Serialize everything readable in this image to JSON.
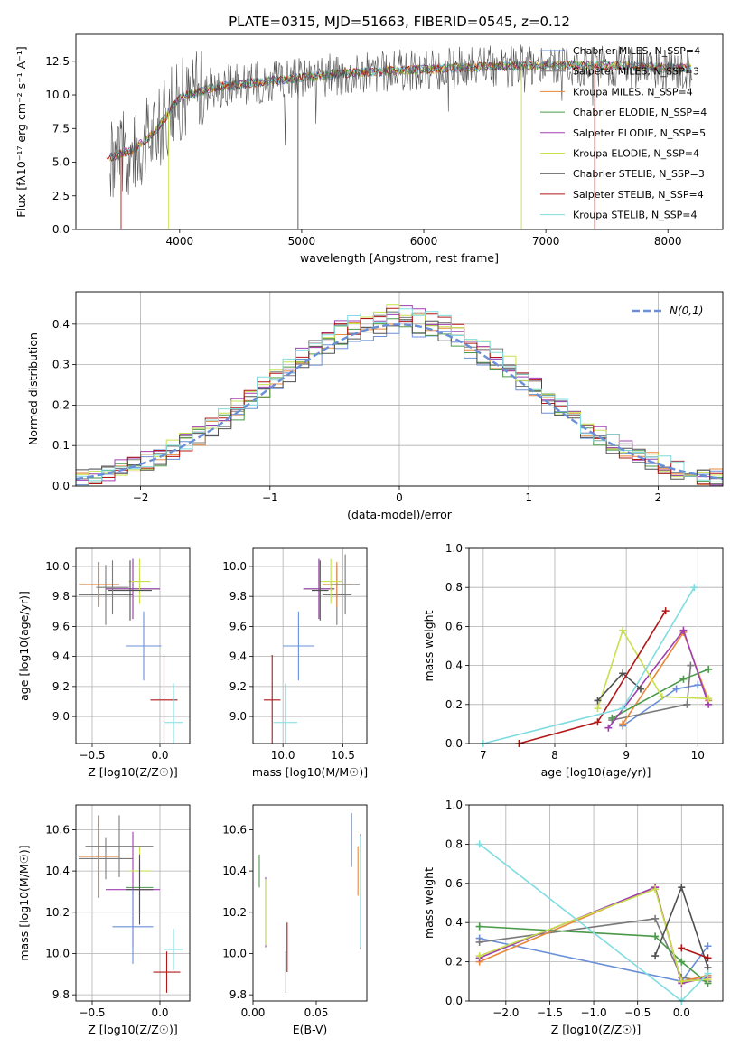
{
  "figure_title": "PLATE=0315, MJD=51663, FIBERID=0545, z=0.12",
  "series_colors": [
    "#6a8fd8",
    "#7a7a7a",
    "#e8883a",
    "#4a9a4a",
    "#a040b0",
    "#c8e050",
    "#505050",
    "#b01818",
    "#80dce0"
  ],
  "chart_data": [
    {
      "id": "spectrum",
      "type": "line",
      "xlabel": "wavelength [Angstrom, rest frame]",
      "ylabel": "Flux [fλ10⁻¹⁷ erg cm⁻² s⁻¹ A⁻¹]",
      "xlim": [
        3150,
        8450
      ],
      "ylim": [
        0,
        14.5
      ],
      "xticks": [
        4000,
        5000,
        6000,
        7000,
        8000
      ],
      "yticks": [
        0.0,
        2.5,
        5.0,
        7.5,
        10.0,
        12.5
      ],
      "grid": false,
      "legend": "right",
      "series": [
        {
          "name": "Chabrier MILES, N_SSP=4"
        },
        {
          "name": "Salpeter MILES, N_SSP=3"
        },
        {
          "name": "Kroupa MILES, N_SSP=4"
        },
        {
          "name": "Chabrier ELODIE, N_SSP=4"
        },
        {
          "name": "Salpeter ELODIE, N_SSP=5"
        },
        {
          "name": "Kroupa ELODIE, N_SSP=4"
        },
        {
          "name": "Chabrier STELIB, N_SSP=3"
        },
        {
          "name": "Salpeter STELIB, N_SSP=4"
        },
        {
          "name": "Kroupa STELIB, N_SSP=4"
        }
      ],
      "model_continuum": {
        "x": [
          3400,
          3600,
          3800,
          4000,
          4300,
          4600,
          5000,
          5500,
          6000,
          6500,
          7000,
          7500,
          8000,
          8200
        ],
        "y": [
          5.3,
          5.8,
          7.3,
          9.8,
          10.6,
          10.9,
          11.3,
          11.7,
          11.9,
          12.1,
          12.2,
          12.2,
          12.0,
          12.0
        ]
      }
    },
    {
      "id": "residual_hist",
      "type": "histogram",
      "xlabel": "(data-model)/error",
      "ylabel": "Normed distribution",
      "xlim": [
        -2.5,
        2.5
      ],
      "ylim": [
        0,
        0.48
      ],
      "xticks": [
        -2,
        -1,
        0,
        1,
        2
      ],
      "yticks": [
        0.0,
        0.1,
        0.2,
        0.3,
        0.4
      ],
      "grid": true,
      "legend": "top-right",
      "reference_curve": {
        "name": "N(0,1)",
        "mean": 0,
        "sigma": 1
      },
      "peak_values": [
        0.39,
        0.42,
        0.41,
        0.4,
        0.44,
        0.46,
        0.4,
        0.42,
        0.43
      ]
    },
    {
      "id": "age_vs_Z",
      "type": "errorbar",
      "xlabel": "Z [log10(Z/Z☉)]",
      "ylabel": "age  [log10(age/yr)]",
      "xlim": [
        -0.62,
        0.22
      ],
      "ylim": [
        8.82,
        10.12
      ],
      "xticks": [
        -0.5,
        0.0
      ],
      "yticks": [
        9.0,
        9.2,
        9.4,
        9.6,
        9.8,
        10.0
      ],
      "grid": true,
      "points": [
        {
          "x": -0.4,
          "xerr": 0.2,
          "y": 9.81,
          "yerr": 0.2
        },
        {
          "x": -0.45,
          "xerr": 0.15,
          "y": 9.88,
          "yerr": 0.15
        },
        {
          "x": -0.2,
          "xerr": 0.2,
          "y": 9.85,
          "yerr": 0.2
        },
        {
          "x": -0.2,
          "xerr": 0.2,
          "y": 9.85,
          "yerr": 0.2
        },
        {
          "x": -0.15,
          "xerr": 0.08,
          "y": 9.9,
          "yerr": 0.15
        },
        {
          "x": -0.22,
          "xerr": 0.16,
          "y": 9.84,
          "yerr": 0.2
        },
        {
          "x": 0.03,
          "xerr": 0.1,
          "y": 9.11,
          "yerr": 0.3
        },
        {
          "x": 0.1,
          "xerr": 0.07,
          "y": 8.96,
          "yerr": 0.26
        },
        {
          "x": -0.12,
          "xerr": 0.13,
          "y": 9.47,
          "yerr": 0.23
        },
        {
          "x": -0.35,
          "xerr": 0.12,
          "y": 9.86,
          "yerr": 0.18
        }
      ]
    },
    {
      "id": "age_vs_mass",
      "type": "errorbar",
      "xlabel": "mass [log10(M/M☉)]",
      "ylabel": "",
      "xlim": [
        9.75,
        10.7
      ],
      "ylim": [
        8.82,
        10.12
      ],
      "xticks": [
        10.0,
        10.5
      ],
      "yticks": [
        9.0,
        9.2,
        9.4,
        9.6,
        9.8,
        10.0
      ],
      "grid": true,
      "points": [
        {
          "x": 10.45,
          "xerr": 0.12,
          "y": 9.81,
          "yerr": 0.2
        },
        {
          "x": 10.45,
          "xerr": 0.12,
          "y": 9.88,
          "yerr": 0.15
        },
        {
          "x": 10.3,
          "xerr": 0.13,
          "y": 9.85,
          "yerr": 0.2
        },
        {
          "x": 10.3,
          "xerr": 0.13,
          "y": 9.85,
          "yerr": 0.2
        },
        {
          "x": 10.4,
          "xerr": 0.09,
          "y": 9.9,
          "yerr": 0.15
        },
        {
          "x": 10.31,
          "xerr": 0.07,
          "y": 9.84,
          "yerr": 0.2
        },
        {
          "x": 9.91,
          "xerr": 0.07,
          "y": 9.11,
          "yerr": 0.3
        },
        {
          "x": 10.02,
          "xerr": 0.1,
          "y": 8.96,
          "yerr": 0.26
        },
        {
          "x": 10.13,
          "xerr": 0.13,
          "y": 9.47,
          "yerr": 0.23
        },
        {
          "x": 10.52,
          "xerr": 0.12,
          "y": 9.88,
          "yerr": 0.2
        }
      ]
    },
    {
      "id": "weight_vs_age",
      "type": "line",
      "xlabel": "age  [log10(age/yr)]",
      "ylabel": "mass weight",
      "xlim": [
        6.8,
        10.35
      ],
      "ylim": [
        0,
        1.0
      ],
      "xticks": [
        7,
        8,
        9,
        10
      ],
      "yticks": [
        0.0,
        0.2,
        0.4,
        0.6,
        0.8,
        1.0
      ],
      "grid": true,
      "series": [
        {
          "x": [
            8.95,
            9.7,
            10.0
          ],
          "y": [
            0.09,
            0.28,
            0.3
          ]
        },
        {
          "x": [
            8.8,
            9.85,
            9.9
          ],
          "y": [
            0.12,
            0.2,
            0.4
          ]
        },
        {
          "x": [
            8.95,
            9.8,
            10.15
          ],
          "y": [
            0.1,
            0.57,
            0.22
          ]
        },
        {
          "x": [
            8.8,
            9.8,
            10.15
          ],
          "y": [
            0.13,
            0.33,
            0.38
          ]
        },
        {
          "x": [
            8.75,
            9.8,
            10.15
          ],
          "y": [
            0.08,
            0.58,
            0.2
          ]
        },
        {
          "x": [
            8.6,
            8.95,
            9.5,
            10.15
          ],
          "y": [
            0.18,
            0.58,
            0.24,
            0.23
          ]
        },
        {
          "x": [
            8.6,
            8.95,
            9.2
          ],
          "y": [
            0.22,
            0.36,
            0.28
          ]
        },
        {
          "x": [
            7.5,
            8.6,
            9.55
          ],
          "y": [
            0.0,
            0.11,
            0.68
          ]
        },
        {
          "x": [
            7.0,
            8.95,
            9.95
          ],
          "y": [
            0.0,
            0.18,
            0.8
          ]
        }
      ]
    },
    {
      "id": "mass_vs_Z",
      "type": "errorbar",
      "xlabel": "Z [log10(Z/Z☉)]",
      "ylabel": "mass [log10(M/M☉)]",
      "xlim": [
        -0.62,
        0.22
      ],
      "ylim": [
        9.77,
        10.72
      ],
      "xticks": [
        -0.5,
        0.0
      ],
      "yticks": [
        9.8,
        10.0,
        10.2,
        10.4,
        10.6
      ],
      "grid": true,
      "points": [
        {
          "x": -0.4,
          "xerr": 0.2,
          "y": 10.46,
          "yerr": 0.1
        },
        {
          "x": -0.45,
          "xerr": 0.15,
          "y": 10.47,
          "yerr": 0.2
        },
        {
          "x": -0.15,
          "xerr": 0.1,
          "y": 10.32,
          "yerr": 0.12
        },
        {
          "x": -0.2,
          "xerr": 0.2,
          "y": 10.31,
          "yerr": 0.28
        },
        {
          "x": -0.15,
          "xerr": 0.08,
          "y": 10.4,
          "yerr": 0.12
        },
        {
          "x": -0.15,
          "xerr": 0.1,
          "y": 10.31,
          "yerr": 0.17
        },
        {
          "x": 0.05,
          "xerr": 0.1,
          "y": 9.91,
          "yerr": 0.1
        },
        {
          "x": 0.1,
          "xerr": 0.07,
          "y": 10.02,
          "yerr": 0.1
        },
        {
          "x": -0.2,
          "xerr": 0.15,
          "y": 10.13,
          "yerr": 0.18
        },
        {
          "x": -0.3,
          "xerr": 0.25,
          "y": 10.52,
          "yerr": 0.15
        }
      ]
    },
    {
      "id": "mass_vs_EBV",
      "type": "errorbar",
      "xlabel": "E(B-V)",
      "ylabel": "",
      "xlim": [
        0.0,
        0.09
      ],
      "ylim": [
        9.77,
        10.72
      ],
      "xticks": [
        0.0,
        0.05
      ],
      "yticks": [
        9.8,
        10.0,
        10.2,
        10.4,
        10.6
      ],
      "grid": false,
      "points": [
        {
          "x": 0.085,
          "y": 10.3,
          "yerr": 0.28
        },
        {
          "x": 0.083,
          "y": 10.4,
          "yerr": 0.12
        },
        {
          "x": 0.005,
          "y": 10.4,
          "yerr": 0.08
        },
        {
          "x": 0.01,
          "y": 10.2,
          "yerr": 0.17
        },
        {
          "x": 0.01,
          "y": 10.2,
          "yerr": 0.16
        },
        {
          "x": 0.026,
          "y": 9.91,
          "yerr": 0.1
        },
        {
          "x": 0.027,
          "y": 10.03,
          "yerr": 0.12
        },
        {
          "x": 0.085,
          "y": 10.3,
          "yerr": 0.27
        },
        {
          "x": 0.078,
          "y": 10.55,
          "yerr": 0.13
        }
      ]
    },
    {
      "id": "weight_vs_Z",
      "type": "line",
      "xlabel": "Z [log10(Z/Z☉)]",
      "ylabel": "mass weight",
      "xlim": [
        -2.42,
        0.47
      ],
      "ylim": [
        0,
        1.0
      ],
      "xticks": [
        -2.0,
        -1.5,
        -1.0,
        -0.5,
        0.0
      ],
      "yticks": [
        0.0,
        0.2,
        0.4,
        0.6,
        0.8,
        1.0
      ],
      "grid": true,
      "series": [
        {
          "x": [
            -2.3,
            0.0,
            0.3
          ],
          "y": [
            0.32,
            0.1,
            0.28
          ]
        },
        {
          "x": [
            -2.3,
            -0.3,
            0.0,
            0.3
          ],
          "y": [
            0.3,
            0.42,
            0.12,
            0.1
          ]
        },
        {
          "x": [
            -2.3,
            -0.3,
            0.0,
            0.3
          ],
          "y": [
            0.2,
            0.58,
            0.1,
            0.13
          ]
        },
        {
          "x": [
            -2.3,
            -0.3,
            0.0,
            0.3
          ],
          "y": [
            0.38,
            0.33,
            0.2,
            0.09
          ]
        },
        {
          "x": [
            -2.3,
            -0.3,
            0.0,
            0.3
          ],
          "y": [
            0.22,
            0.58,
            0.09,
            0.12
          ]
        },
        {
          "x": [
            -2.3,
            -0.3,
            0.0,
            0.3
          ],
          "y": [
            0.23,
            0.57,
            0.1,
            0.11
          ]
        },
        {
          "x": [
            -0.3,
            0.0,
            0.3
          ],
          "y": [
            0.23,
            0.58,
            0.17
          ]
        },
        {
          "x": [
            0.0,
            0.3
          ],
          "y": [
            0.27,
            0.22
          ]
        },
        {
          "x": [
            -2.3,
            0.0,
            0.3
          ],
          "y": [
            0.8,
            0.0,
            0.14
          ]
        }
      ]
    }
  ]
}
